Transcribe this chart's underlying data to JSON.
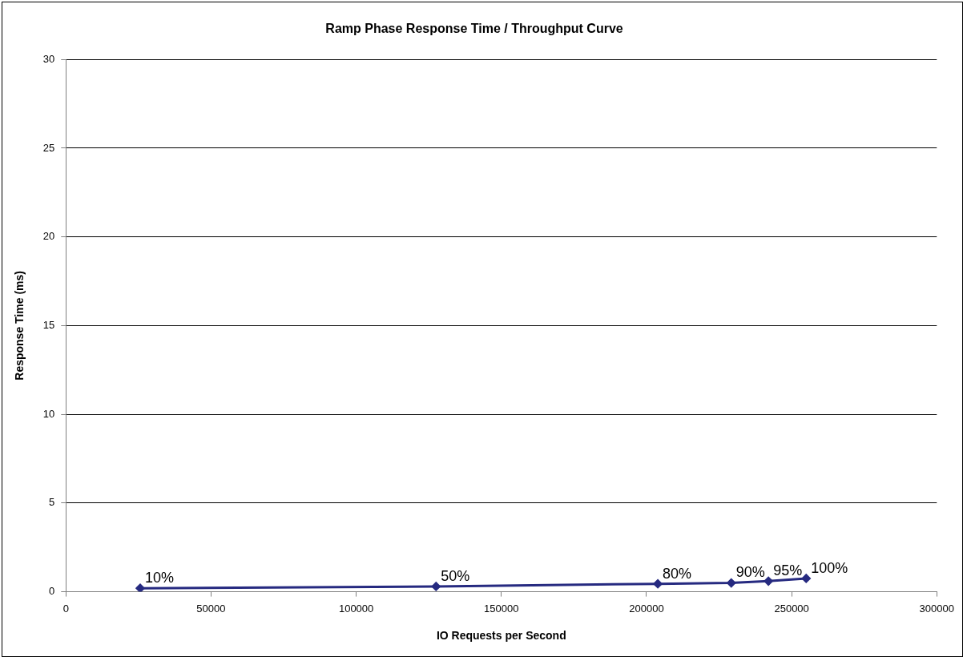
{
  "chart_data": {
    "type": "line",
    "title": "Ramp Phase Response Time / Throughput Curve",
    "xlabel": "IO Requests per Second",
    "ylabel": "Response Time (ms)",
    "x": [
      25600,
      127500,
      203900,
      229200,
      242000,
      255000
    ],
    "series": [
      {
        "color": "#262a80",
        "values": [
          0.2,
          0.3,
          0.45,
          0.5,
          0.6,
          0.75
        ]
      }
    ],
    "annotations": [
      {
        "text": "10%",
        "x": 25600,
        "y": 0.2
      },
      {
        "text": "50%",
        "x": 127500,
        "y": 0.3
      },
      {
        "text": "80%",
        "x": 203900,
        "y": 0.45
      },
      {
        "text": "90%",
        "x": 229200,
        "y": 0.5
      },
      {
        "text": "95%",
        "x": 242000,
        "y": 0.6
      },
      {
        "text": "100%",
        "x": 255000,
        "y": 0.75
      }
    ],
    "xlim": [
      0,
      300000
    ],
    "xticks": [
      0,
      50000,
      100000,
      150000,
      200000,
      250000,
      300000
    ],
    "ylim": [
      0,
      30
    ],
    "yticks": [
      0,
      5,
      10,
      15,
      20,
      25,
      30
    ],
    "grid": "y",
    "legend": false,
    "marker": "diamond",
    "line_style": "solid"
  }
}
